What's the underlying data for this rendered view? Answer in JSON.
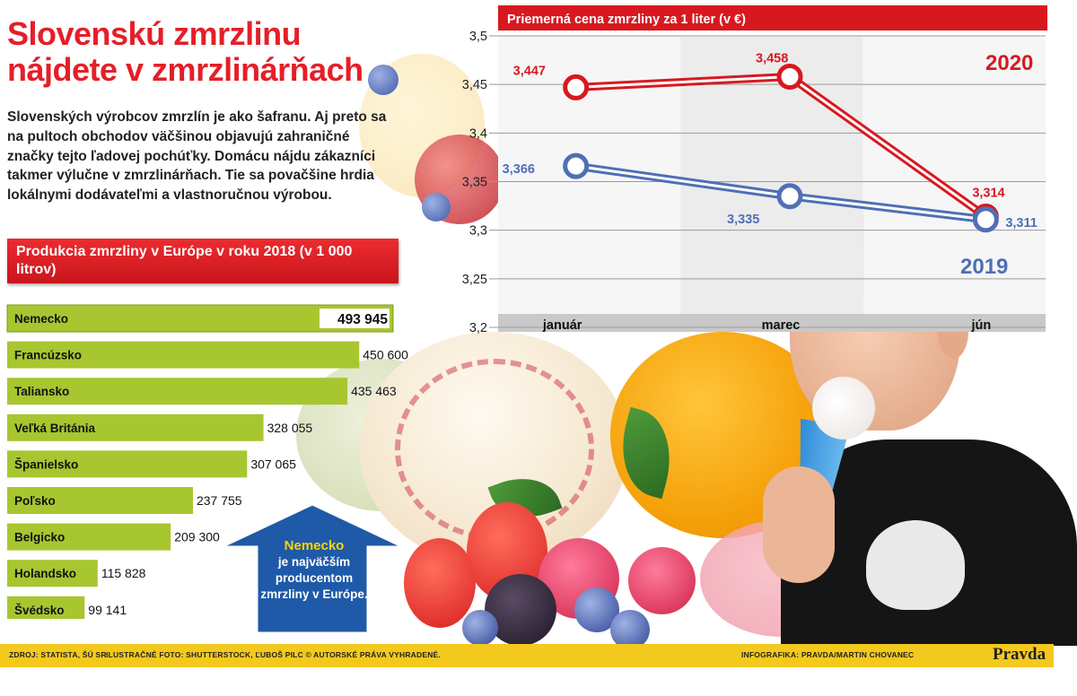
{
  "header": {
    "title": "Slovenskú zmrzlinu nájdete v zmrzlinárňach",
    "intro": "Slovenských výrobcov zmrzlín je ako šafranu. Aj preto sa na pultoch obchodov väčšinou objavujú zahraničné značky tejto ľadovej pochúťky. Domácu nájdu zákazníci takmer výlučne v zmrzlinárňach. Tie sa povačšine hrdia lokálnymi dodávateľmi a vlastnoručnou výrobou."
  },
  "callout": {
    "highlight": "Nemecko",
    "text": "je najväčším producentom zmrzliny v Európe."
  },
  "footer": {
    "source": "ZDROJ: STATISTA, ŠÚ SR",
    "photo": "ILUSTRAČNÉ FOTO: SHUTTERSTOCK,   ĽUBOŠ PILC © AUTORSKÉ PRÁVA VYHRADENÉ.",
    "credit": "INFOGRAFIKA: PRAVDA/MARTIN CHOVANEC",
    "brand": "Pravda"
  },
  "colors": {
    "accent_red": "#e41f28",
    "bar_green": "#a7c630",
    "series_2020": "#d7191f",
    "series_2019": "#4f6fb6",
    "footer_yellow": "#f4c91d",
    "arrow_blue": "#1f5aa8"
  },
  "chart_data": [
    {
      "type": "bar",
      "orientation": "horizontal",
      "title": "Produkcia zmrzliny v Európe v roku 2018 (v 1 000 litrov)",
      "categories": [
        "Nemecko",
        "Francúzsko",
        "Taliansko",
        "Veľká Británia",
        "Španielsko",
        "Poľsko",
        "Belgicko",
        "Holandsko",
        "Švédsko"
      ],
      "values": [
        493945,
        450600,
        435463,
        328055,
        307065,
        237755,
        209300,
        115828,
        99141
      ],
      "value_labels": [
        "493 945",
        "450 600",
        "435 463",
        "328 055",
        "307 065",
        "237 755",
        "209 300",
        "115 828",
        "99 141"
      ]
    },
    {
      "type": "line",
      "title": "Priemerná cena zmrzliny za 1 liter (v €)",
      "categories": [
        "január",
        "marec",
        "jún"
      ],
      "ylim": [
        3.2,
        3.5
      ],
      "yticks": [
        3.2,
        3.25,
        3.3,
        3.35,
        3.4,
        3.45,
        3.5
      ],
      "ytick_labels": [
        "3,2",
        "3,25",
        "3,3",
        "3,35",
        "3,4",
        "3,45",
        "3,5"
      ],
      "grid": true,
      "series": [
        {
          "name": "2020",
          "values": [
            3.447,
            3.458,
            3.314
          ],
          "labels": [
            "3,447",
            "3,458",
            "3,314"
          ]
        },
        {
          "name": "2019",
          "values": [
            3.366,
            3.335,
            3.311
          ],
          "labels": [
            "3,366",
            "3,335",
            "3,311"
          ]
        }
      ]
    }
  ]
}
